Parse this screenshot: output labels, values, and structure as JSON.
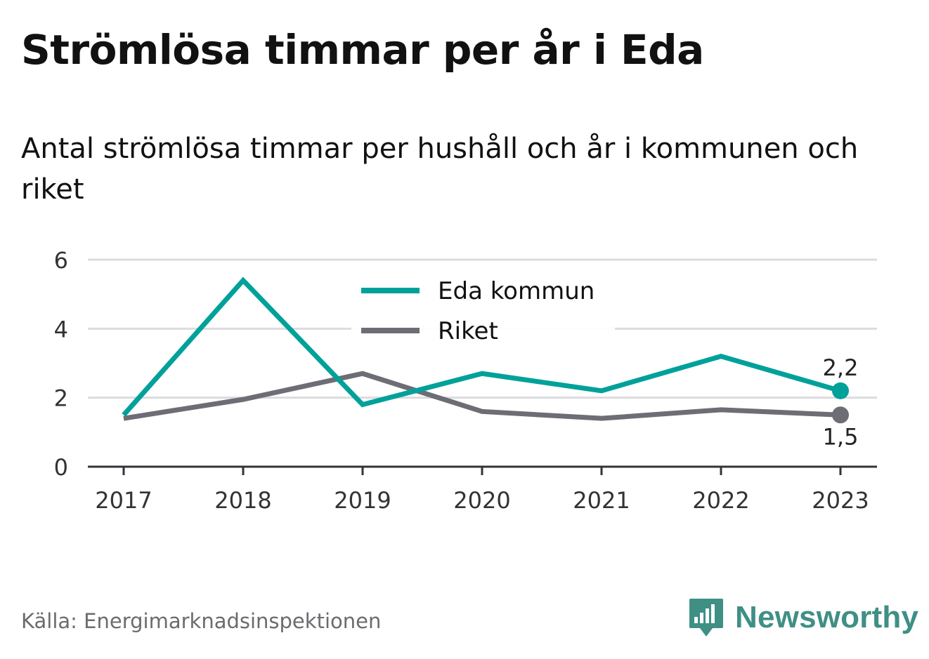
{
  "title": "Strömlösa timmar per år i Eda",
  "subtitle": "Antal strömlösa timmar per hushåll och år i kommunen och riket",
  "source": "Källa: Energimarknadsinspektionen",
  "brand": {
    "name": "Newsworthy",
    "logo_icon": "bar-chart-speech-bubble-icon",
    "color": "#3f8f85"
  },
  "chart_data": {
    "type": "line",
    "title": "Strömlösa timmar per år i Eda",
    "subtitle": "Antal strömlösa timmar per hushåll och år i kommunen och riket",
    "x": [
      "2017",
      "2018",
      "2019",
      "2020",
      "2021",
      "2022",
      "2023"
    ],
    "ylim": [
      0,
      6
    ],
    "yticks": [
      0,
      2,
      4,
      6
    ],
    "grid": true,
    "legend_position": "top-center",
    "series": [
      {
        "name": "Eda kommun",
        "color": "#00a19a",
        "values": [
          1.5,
          5.4,
          1.8,
          2.7,
          2.2,
          3.2,
          2.2
        ],
        "end_label": "2,2"
      },
      {
        "name": "Riket",
        "color": "#6d6d75",
        "values": [
          1.4,
          1.95,
          2.7,
          1.6,
          1.4,
          1.65,
          1.5
        ],
        "end_label": "1,5"
      }
    ]
  }
}
